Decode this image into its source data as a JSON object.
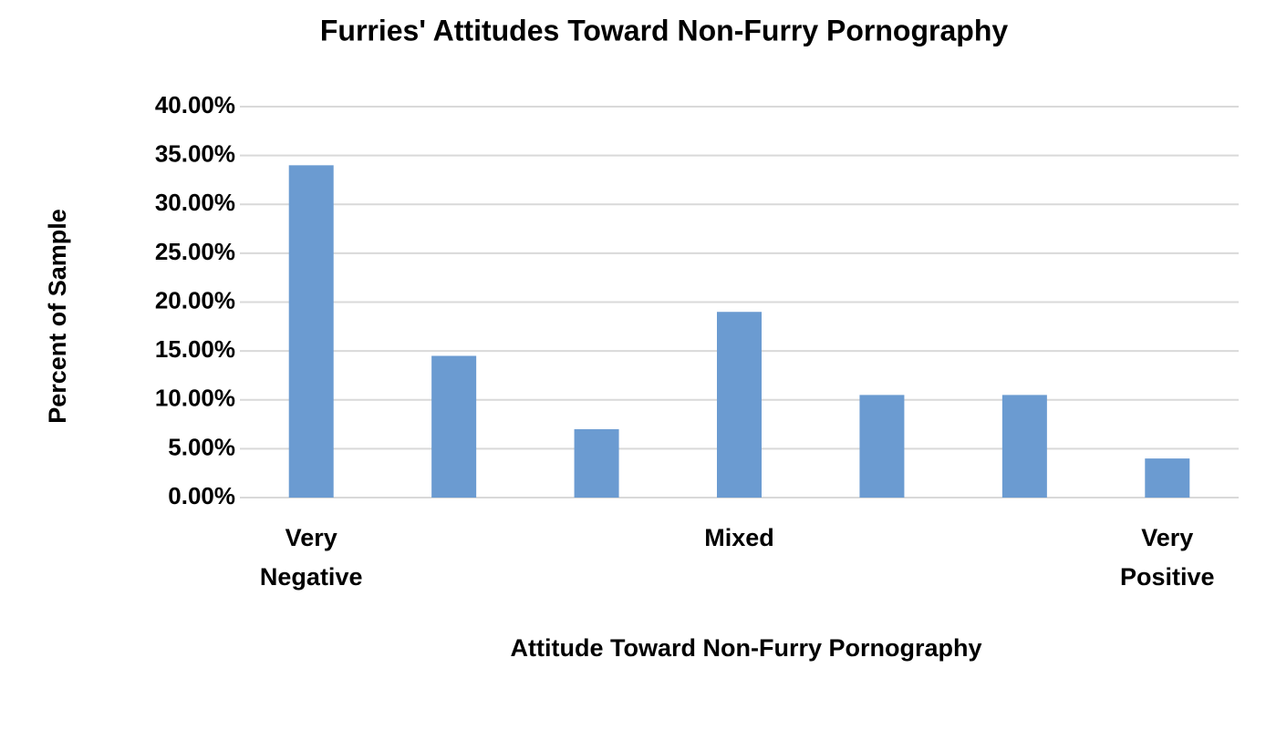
{
  "chart_data": {
    "type": "bar",
    "title": "Furries' Attitudes Toward Non-Furry Pornography",
    "x_label": "Attitude Toward Non-Furry Pornography",
    "y_label": "Percent of Sample",
    "categories": [
      "Very Negative",
      null,
      null,
      "Mixed",
      null,
      null,
      "Very Positive"
    ],
    "values": [
      34,
      14.5,
      7,
      19,
      10.5,
      10.5,
      4
    ],
    "color": "#6b9bd1",
    "ylim": [
      0,
      40
    ],
    "yticks": [
      {
        "value": 0,
        "label": "0.00%"
      },
      {
        "value": 5,
        "label": "5.00%"
      },
      {
        "value": 10,
        "label": "10.00%"
      },
      {
        "value": 15,
        "label": "15.00%"
      },
      {
        "value": 20,
        "label": "20.00%"
      },
      {
        "value": 25,
        "label": "25.00%"
      },
      {
        "value": 30,
        "label": "30.00%"
      },
      {
        "value": 35,
        "label": "35.00%"
      },
      {
        "value": 40,
        "label": "40.00%"
      }
    ],
    "grid": true
  }
}
